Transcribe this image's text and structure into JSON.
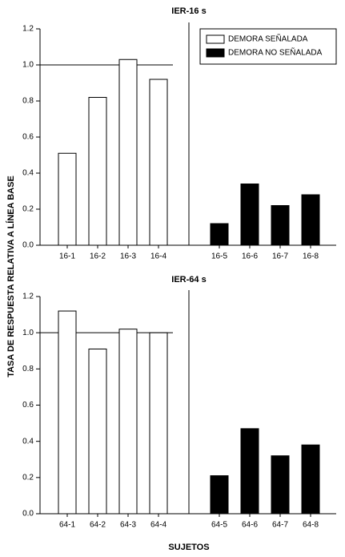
{
  "chart_data": [
    {
      "type": "bar",
      "title": "IER-16 s",
      "categories": [
        "16-1",
        "16-2",
        "16-3",
        "16-4",
        "16-5",
        "16-6",
        "16-7",
        "16-8"
      ],
      "series": [
        {
          "name": "DEMORA SEÑALADA",
          "color": "#ffffff",
          "values": [
            0.51,
            0.82,
            1.03,
            0.92,
            null,
            null,
            null,
            null
          ]
        },
        {
          "name": "DEMORA NO SEÑALADA",
          "color": "#000000",
          "values": [
            null,
            null,
            null,
            null,
            0.12,
            0.34,
            0.22,
            0.28
          ]
        }
      ],
      "ylim": [
        0,
        1.2
      ],
      "yticks": [
        {
          "value": 0,
          "label": "0.0"
        },
        0.2,
        0.4,
        0.6,
        0.8,
        {
          "value": 1,
          "label": "1.0"
        },
        1.2
      ],
      "reference_line": 1,
      "legend": "upper right",
      "ylabel": "TASA DE RESPUESTA RELATIVA A LÍNEA BASE"
    },
    {
      "type": "bar",
      "title": "IER-64 s",
      "categories": [
        "64-1",
        "64-2",
        "64-3",
        "64-4",
        "64-5",
        "64-6",
        "64-7",
        "64-8"
      ],
      "series": [
        {
          "color": "#ffffff",
          "values": [
            1.12,
            0.91,
            1.02,
            1.0,
            null,
            null,
            null,
            null
          ]
        },
        {
          "color": "#000000",
          "values": [
            null,
            null,
            null,
            null,
            0.21,
            0.47,
            0.32,
            0.38
          ]
        }
      ],
      "ylim": [
        0,
        1.2
      ],
      "yticks": [
        {
          "value": 0,
          "label": "0.0"
        },
        0.2,
        0.4,
        0.6,
        0.8,
        {
          "value": 1,
          "label": "1.0"
        },
        1.2
      ],
      "reference_line": 1,
      "xlabel": "SUJETOS"
    }
  ]
}
